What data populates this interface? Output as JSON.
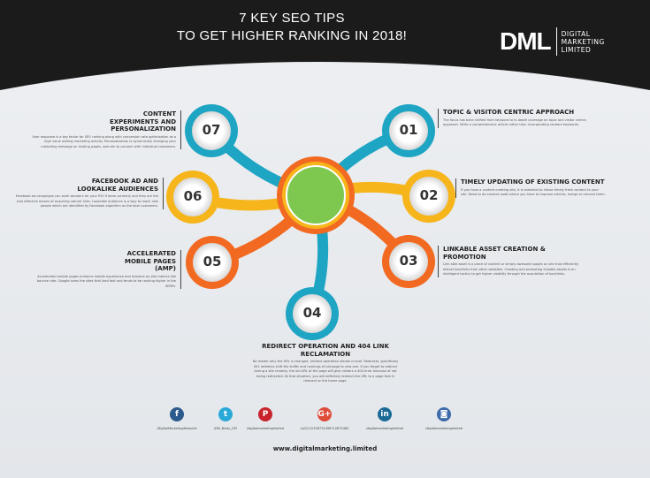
{
  "header": {
    "title_line1": "7 KEY SEO TIPS",
    "title_line2": "TO GET HIGHER RANKING IN 2018!",
    "logo_mark": "DML",
    "logo_text1": "DIGITAL",
    "logo_text2": "MARKETING",
    "logo_text3": "LIMITED"
  },
  "colors": {
    "teal": "#1ea5c3",
    "yellow": "#f7b51c",
    "orange": "#f26a21",
    "center": "#7ec850",
    "header": "#1b1b1b"
  },
  "tips": [
    {
      "num": "01",
      "title": "TOPIC & VISITOR CENTRIC APPROACH",
      "text": "The focus has been shifted from keyword to in-depth coverage on topic and visitor centric approach. Write a comprehensive article rather than incorporating random keywords."
    },
    {
      "num": "02",
      "title": "TIMELY UPDATING OF EXISTING CONTENT",
      "text": "If you have a content creating site, it is essential to infuse timely fresh content to your site. Need to do content audit where you have to improve articles, merge or remove them."
    },
    {
      "num": "03",
      "title": "LINKABLE ASSET CREATION & PROMOTION",
      "text": "Link able asset is a piece of content or simply awesome pages on site that efficiently attract backlinks from other websites. Creating and promoting linkable assets is an intelligent tactics to get higher visibility through the acquisition of backlinks."
    },
    {
      "num": "04",
      "title": "REDIRECT OPERATION AND 404 LINK RECLAMATION",
      "text": "No matter why the URL is changed, redirect operation stands crucial. Redirects, specifically 301 redirects shift the traffic and rankings of old page to new one. If you forget to redirect during a site revamp, the old URL of the page will give visitors a 404 error because of not being redirected. At that situation, you will definitely redirect the URL to a page that is relevant or the home page."
    },
    {
      "num": "05",
      "title": "ACCELERATED MOBILE PAGES (AMP)",
      "text": "Accelerated mobile pages enhance mobile experience and improve on-site metrics like bounce rate. Google loves the sites that load fast and tends to be ranking higher in the SERPs."
    },
    {
      "num": "06",
      "title": "FACEBOOK AD AND LOOKALIKE AUDIENCES",
      "text": "Facebook ad campaigns can work wonders for your ROI if done correctly and they are the cost effective means of acquiring natural links. Lookalike Audience is a way to reach new people which are identified by Facebook algorithm as the best customers."
    },
    {
      "num": "07",
      "title": "CONTENT EXPERIMENTS AND PERSONALIZATION",
      "text": "User response is a key factor for SEO ranking along with conversion rate optimization as a high value adding marketing activity. Personalization is dynamically changing your marketing message on landing pages, web etc to connect with individual customers."
    }
  ],
  "social": [
    {
      "icon": "facebook-icon",
      "glyph": "f",
      "color": "#2d5a8c",
      "handle": "/DigitalMarketingNewsLtd"
    },
    {
      "icon": "twitter-icon",
      "glyph": "t",
      "color": "#2aa9d8",
      "handle": "/DM_News_LTD"
    },
    {
      "icon": "pinterest-icon",
      "glyph": "P",
      "color": "#c8232c",
      "handle": "/digitalmarketinglimited"
    },
    {
      "icon": "google-plus-icon",
      "glyph": "G+",
      "color": "#dd4b39",
      "handle": "/u/0/112356731498712875483"
    },
    {
      "icon": "linkedin-icon",
      "glyph": "in",
      "color": "#1b6a96",
      "handle": "/digitalmarketinglimited"
    },
    {
      "icon": "instagram-icon",
      "glyph": "◙",
      "color": "#3d6aa8",
      "handle": "/digitalmarketinglimited"
    }
  ],
  "website": "www.digitalmarketing.limited"
}
